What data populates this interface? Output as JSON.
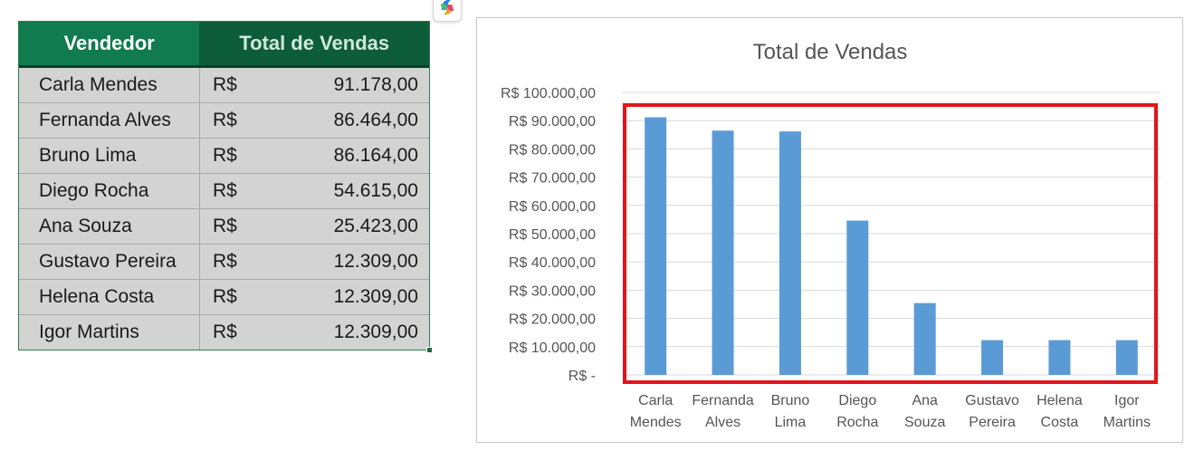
{
  "table": {
    "headers": [
      "Vendedor",
      "Total de Vendas"
    ],
    "currency": "R$",
    "rows": [
      {
        "name": "Carla Mendes",
        "value": "91.178,00"
      },
      {
        "name": "Fernanda Alves",
        "value": "86.464,00"
      },
      {
        "name": "Bruno Lima",
        "value": "86.164,00"
      },
      {
        "name": "Diego Rocha",
        "value": "54.615,00"
      },
      {
        "name": "Ana Souza",
        "value": "25.423,00"
      },
      {
        "name": "Gustavo Pereira",
        "value": "12.309,00"
      },
      {
        "name": "Helena Costa",
        "value": "12.309,00"
      },
      {
        "name": "Igor Martins",
        "value": "12.309,00"
      }
    ]
  },
  "copilot_icon": "copilot-icon",
  "chart_data": {
    "type": "bar",
    "title": "Total de Vendas",
    "categories": [
      [
        "Carla",
        "Mendes"
      ],
      [
        "Fernanda",
        "Alves"
      ],
      [
        "Bruno",
        "Lima"
      ],
      [
        "Diego",
        "Rocha"
      ],
      [
        "Ana",
        "Souza"
      ],
      [
        "Gustavo",
        "Pereira"
      ],
      [
        "Helena",
        "Costa"
      ],
      [
        "Igor",
        "Martins"
      ]
    ],
    "values": [
      91178,
      86464,
      86164,
      54615,
      25423,
      12309,
      12309,
      12309
    ],
    "ylim": [
      0,
      100000
    ],
    "y_ticks": [
      0,
      10000,
      20000,
      30000,
      40000,
      50000,
      60000,
      70000,
      80000,
      90000,
      100000
    ],
    "y_tick_labels": [
      "R$ -",
      "R$ 10.000,00",
      "R$ 20.000,00",
      "R$ 30.000,00",
      "R$ 40.000,00",
      "R$ 50.000,00",
      "R$ 60.000,00",
      "R$ 70.000,00",
      "R$ 80.000,00",
      "R$ 90.000,00",
      "R$ 100.000,00"
    ],
    "grid": true,
    "legend": "none",
    "bar_color": "#5b9bd5",
    "highlight_box_color": "#e3141b"
  }
}
